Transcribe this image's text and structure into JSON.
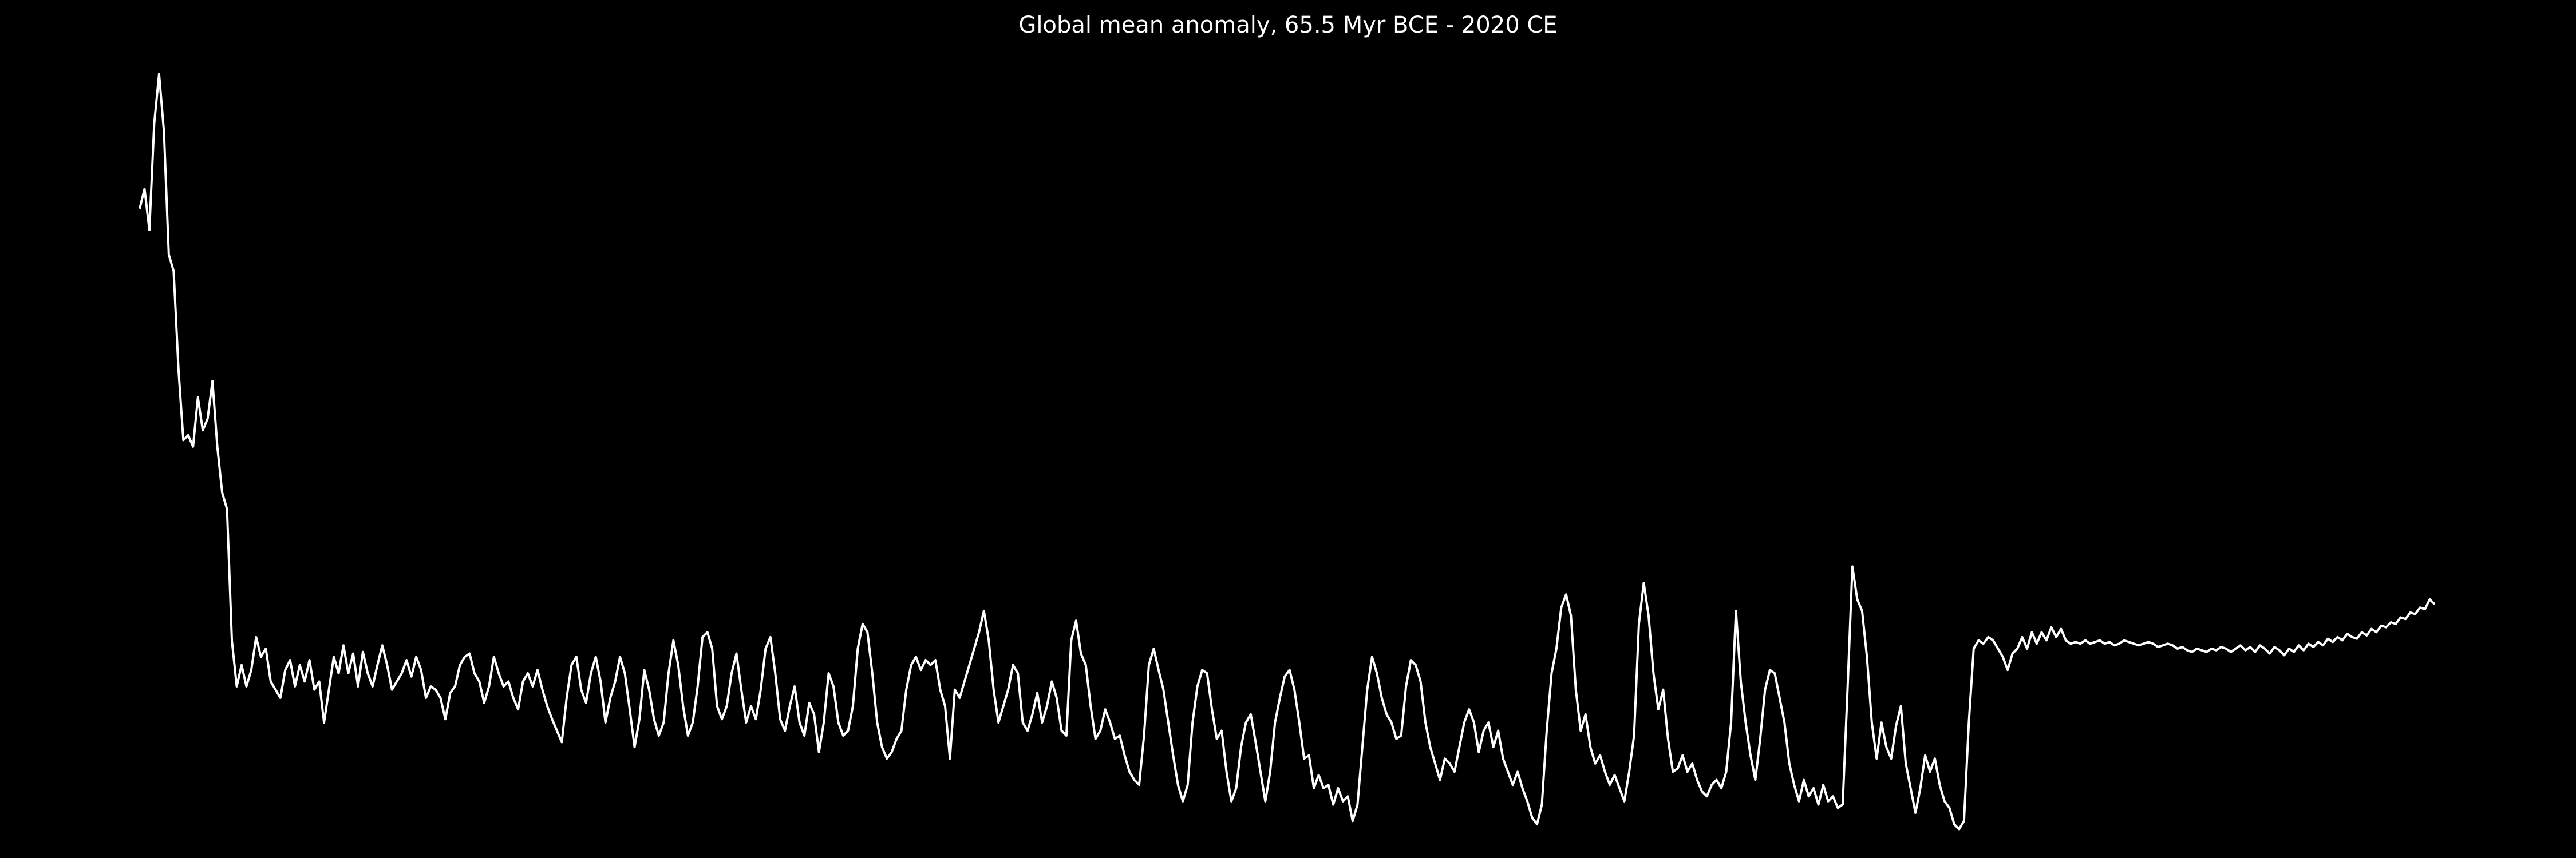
{
  "chart_data": {
    "type": "line",
    "title": "Global mean anomaly, 65.5 Myr BCE - 2020 CE",
    "color": "#ffffff",
    "background": "#000000",
    "ylim": [
      0,
      470
    ],
    "values": [
      383,
      395,
      370,
      435,
      465,
      430,
      355,
      345,
      285,
      242,
      245,
      238,
      268,
      248,
      255,
      278,
      238,
      210,
      200,
      120,
      92,
      105,
      92,
      102,
      122,
      110,
      115,
      95,
      90,
      85,
      102,
      108,
      92,
      105,
      95,
      108,
      90,
      95,
      70,
      90,
      110,
      100,
      117,
      100,
      112,
      92,
      113,
      100,
      92,
      105,
      117,
      105,
      90,
      95,
      100,
      108,
      98,
      110,
      102,
      85,
      92,
      90,
      85,
      72,
      88,
      92,
      105,
      110,
      112,
      100,
      95,
      82,
      92,
      110,
      100,
      92,
      95,
      85,
      78,
      95,
      100,
      92,
      102,
      90,
      80,
      72,
      65,
      58,
      85,
      105,
      110,
      90,
      82,
      100,
      110,
      95,
      70,
      85,
      95,
      110,
      100,
      78,
      55,
      72,
      102,
      90,
      72,
      62,
      70,
      100,
      120,
      105,
      80,
      62,
      70,
      92,
      122,
      125,
      115,
      80,
      72,
      80,
      100,
      112,
      90,
      70,
      80,
      72,
      90,
      115,
      122,
      100,
      72,
      65,
      80,
      92,
      70,
      62,
      82,
      75,
      52,
      70,
      100,
      92,
      70,
      62,
      65,
      80,
      115,
      130,
      125,
      100,
      70,
      55,
      48,
      52,
      60,
      65,
      90,
      105,
      110,
      102,
      108,
      105,
      108,
      90,
      80,
      48,
      90,
      85,
      95,
      105,
      115,
      125,
      138,
      120,
      90,
      70,
      80,
      90,
      105,
      100,
      70,
      65,
      75,
      88,
      70,
      80,
      95,
      85,
      65,
      62,
      120,
      132,
      112,
      105,
      80,
      60,
      65,
      78,
      70,
      60,
      62,
      50,
      40,
      35,
      32,
      62,
      105,
      115,
      102,
      90,
      70,
      50,
      32,
      22,
      32,
      70,
      92,
      102,
      100,
      78,
      60,
      65,
      40,
      22,
      30,
      55,
      70,
      75,
      58,
      40,
      22,
      40,
      70,
      85,
      98,
      102,
      90,
      70,
      48,
      50,
      30,
      38,
      30,
      32,
      20,
      30,
      22,
      25,
      10,
      20,
      55,
      90,
      110,
      100,
      85,
      75,
      70,
      60,
      62,
      92,
      108,
      105,
      95,
      70,
      55,
      45,
      35,
      48,
      45,
      40,
      55,
      70,
      78,
      70,
      52,
      65,
      70,
      55,
      65,
      48,
      40,
      32,
      40,
      30,
      22,
      12,
      8,
      20,
      65,
      100,
      115,
      140,
      148,
      135,
      90,
      65,
      75,
      55,
      45,
      50,
      40,
      32,
      38,
      30,
      22,
      40,
      62,
      130,
      155,
      135,
      100,
      78,
      90,
      60,
      40,
      42,
      50,
      40,
      45,
      35,
      28,
      25,
      32,
      35,
      30,
      40,
      70,
      138,
      95,
      70,
      50,
      35,
      60,
      90,
      102,
      100,
      85,
      70,
      45,
      32,
      22,
      35,
      25,
      30,
      20,
      32,
      22,
      25,
      18,
      20,
      90,
      165,
      145,
      138,
      110,
      70,
      48,
      70,
      55,
      48,
      68,
      80,
      45,
      30,
      15,
      30,
      50,
      40,
      48,
      32,
      22,
      18,
      8,
      5,
      10,
      70,
      115,
      120,
      118,
      122,
      120,
      115,
      110,
      102,
      112,
      115,
      122,
      115,
      125,
      118,
      125,
      120,
      128,
      122,
      127,
      120,
      118,
      119,
      118,
      120,
      118,
      119,
      120,
      118,
      119,
      117,
      118,
      120,
      119,
      118,
      117,
      118,
      119,
      118,
      116,
      117,
      118,
      117,
      115,
      116,
      114,
      113,
      115,
      114,
      113,
      115,
      114,
      116,
      115,
      113,
      115,
      117,
      114,
      116,
      113,
      117,
      115,
      112,
      116,
      114,
      111,
      115,
      113,
      117,
      114,
      118,
      116,
      119,
      117,
      121,
      119,
      122,
      120,
      124,
      122,
      121,
      125,
      123,
      127,
      125,
      129,
      128,
      131,
      130,
      134,
      133,
      137,
      136,
      140,
      139,
      145,
      142
    ]
  }
}
